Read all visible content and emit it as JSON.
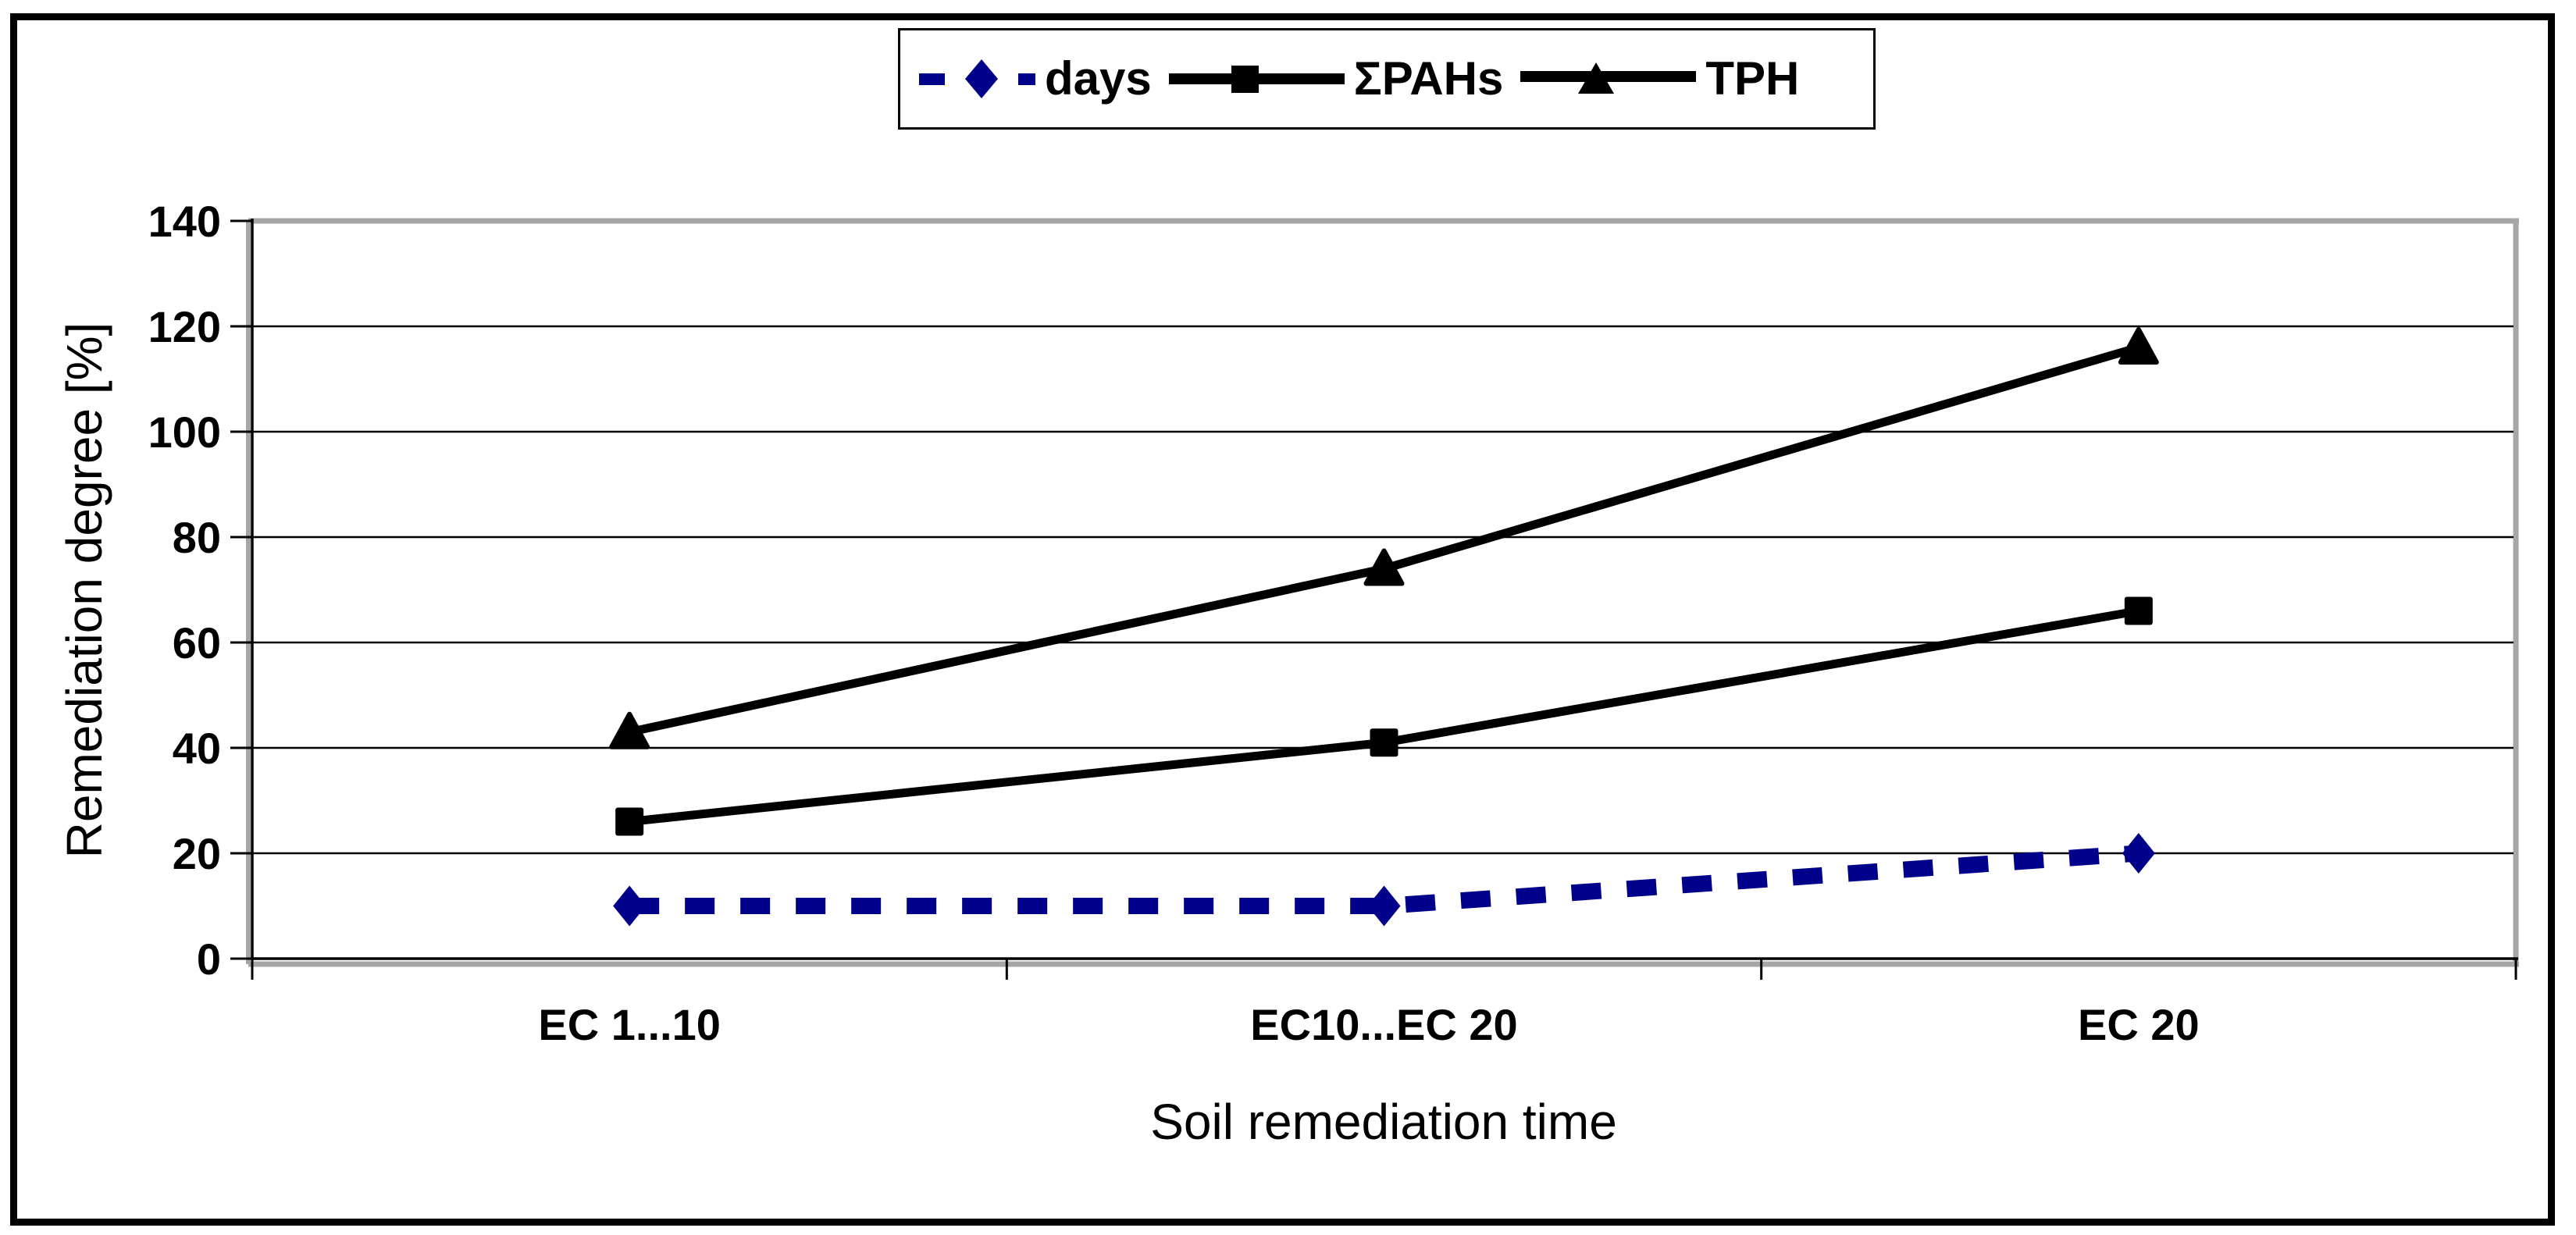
{
  "figure": {
    "background": "#ffffff",
    "outer_border_color": "#000000"
  },
  "colors": {
    "days_series": "#00008B",
    "black_series": "#000000",
    "gridline": "#000000",
    "plot_border_gray": "#A6A6A6"
  },
  "legend": {
    "items": [
      {
        "label": "days",
        "marker": "diamond",
        "line": "dashed",
        "color": "#00008B"
      },
      {
        "label": "ΣPAHs",
        "marker": "square",
        "line": "solid",
        "color": "#000000"
      },
      {
        "label": "TPH",
        "marker": "triangle",
        "line": "solid",
        "color": "#000000"
      }
    ]
  },
  "axes": {
    "y_title": "Remediation degree [%]",
    "x_title": "Soil remediation time",
    "y_tick_labels": [
      "0",
      "20",
      "40",
      "60",
      "80",
      "100",
      "120",
      "140"
    ],
    "x_tick_labels": [
      "EC 1...10",
      "EC10...EC 20",
      "EC 20"
    ]
  },
  "chart_data": {
    "type": "line",
    "categories": [
      "EC 1...10",
      "EC10...EC 20",
      "EC 20"
    ],
    "series": [
      {
        "name": "days",
        "values": [
          10,
          10,
          20
        ],
        "color": "#00008B",
        "style": "dashed",
        "marker": "diamond"
      },
      {
        "name": "ΣPAHs",
        "values": [
          26,
          41,
          66
        ],
        "color": "#000000",
        "style": "solid",
        "marker": "square"
      },
      {
        "name": "TPH",
        "values": [
          43,
          74,
          116
        ],
        "color": "#000000",
        "style": "solid",
        "marker": "triangle"
      }
    ],
    "title": "",
    "xlabel": "Soil remediation time",
    "ylabel": "Remediation degree [%]",
    "ylim": [
      0,
      140
    ],
    "y_tick_step": 20,
    "grid": "horizontal",
    "legend_position": "top-center"
  }
}
